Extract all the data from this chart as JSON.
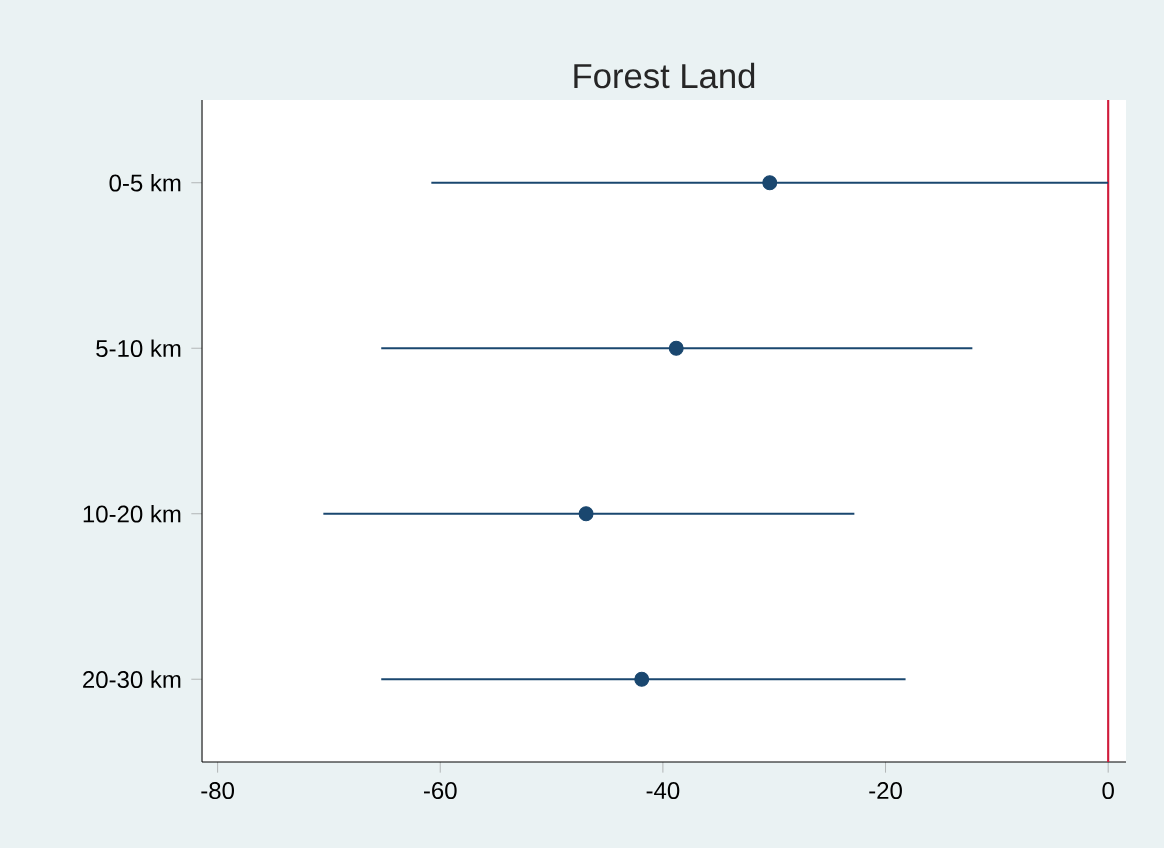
{
  "chart_data": {
    "type": "scatter",
    "title": "Forest Land",
    "orientation": "horizontal",
    "categories": [
      "0-5 km",
      "5-10 km",
      "10-20 km",
      "20-30 km"
    ],
    "values": [
      -30.4,
      -38.8,
      -46.9,
      -41.9
    ],
    "errors": [
      [
        -60.8,
        0
      ],
      [
        -65.3,
        -12.2
      ],
      [
        -70.5,
        -22.8
      ],
      [
        -65.3,
        -18.2
      ]
    ],
    "color": "#1a476f",
    "marker": "circle",
    "xlim": [
      -81.4,
      1.6
    ],
    "xticks": [
      -80,
      -60,
      -40,
      -20,
      0
    ],
    "ref_lines": [
      {
        "axis": "x",
        "value": 0,
        "color": "#d01c3c"
      }
    ],
    "grid": false
  }
}
